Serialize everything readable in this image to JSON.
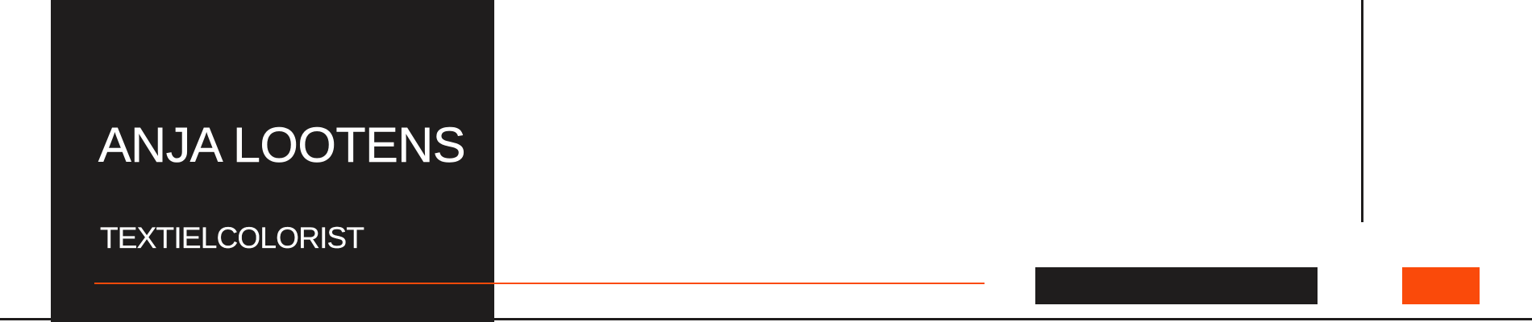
{
  "header": {
    "name": "ANJA LOOTENS",
    "subtitle": "TEXTIELCOLORIST"
  },
  "colors": {
    "dark": "#1f1d1d",
    "accent": "#fa4a0a",
    "background": "#ffffff",
    "text": "#ffffff"
  }
}
